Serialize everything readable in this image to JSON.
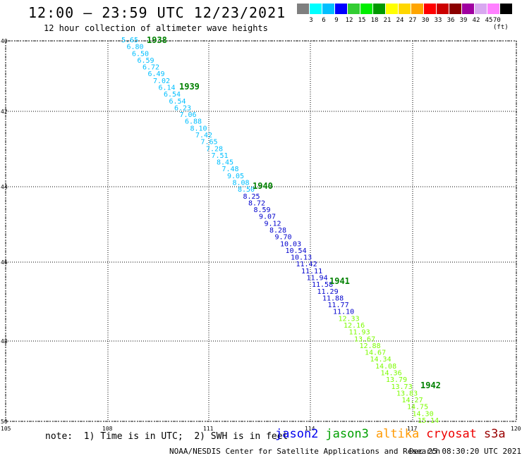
{
  "header": {
    "title": "12:00 – 23:59 UTC 12/23/2021",
    "subtitle": "12 hour collection of altimeter wave heights"
  },
  "colorbar": {
    "colors": [
      "#7f7f7f",
      "#00ffff",
      "#00bfff",
      "#0000ff",
      "#32cd32",
      "#00ee00",
      "#009900",
      "#ffff00",
      "#ffd700",
      "#ffa500",
      "#ff0000",
      "#cc0000",
      "#8b0000",
      "#a000a0",
      "#d8a8f0",
      "#ff80ff",
      "#000000"
    ],
    "labels": [
      "3",
      "6",
      "9",
      "12",
      "15",
      "18",
      "21",
      "24",
      "27",
      "30",
      "33",
      "36",
      "39",
      "42",
      "45",
      "70 (ft)"
    ]
  },
  "map": {
    "y_ticks": [
      "40",
      "42",
      "44",
      "46",
      "48",
      "50"
    ],
    "x_ticks": [
      "105",
      "108",
      "111",
      "114",
      "117",
      "120"
    ],
    "colors": {
      "light_blue": "#00bfff",
      "dark_blue": "#0000cd",
      "light_green": "#7cfc00",
      "green": "#008000"
    },
    "times": [
      "1938",
      "1939",
      "1940",
      "1941",
      "1942"
    ],
    "values": [
      "5.65",
      "6.80",
      "6.50",
      "6.59",
      "6.72",
      "6.49",
      "7.02",
      "6.14",
      "6.54",
      "6.54",
      "6.23",
      "7.06",
      "6.88",
      "8.10",
      "7.42",
      "7.65",
      "7.28",
      "7.51",
      "8.45",
      "7.48",
      "9.05",
      "8.08",
      "8.50",
      "8.25",
      "8.72",
      "8.59",
      "9.07",
      "9.12",
      "8.28",
      "9.70",
      "10.03",
      "10.54",
      "10.13",
      "11.42",
      "11.11",
      "11.94",
      "11.58",
      "11.29",
      "11.88",
      "11.77",
      "11.10",
      "12.33",
      "12.16",
      "11.93",
      "13.67",
      "12.88",
      "14.67",
      "14.34",
      "14.08",
      "14.36",
      "13.79",
      "13.73",
      "13.83",
      "14.27",
      "14.75",
      "14.30",
      "15.14"
    ]
  },
  "footer": {
    "note": "note:  1) Time is in UTC;  2) SWH is in feet",
    "satellites": [
      {
        "name": "jason2",
        "color": "#0000ee"
      },
      {
        "name": "jason3",
        "color": "#00a000"
      },
      {
        "name": "altika",
        "color": "#ff9900"
      },
      {
        "name": "cryosat",
        "color": "#ee0000"
      },
      {
        "name": "s3a",
        "color": "#990000"
      }
    ],
    "credit": "NOAA/NESDIS Center for Satellite Applications and Research",
    "timestamp": "Dec 25 08:30:20 UTC 2021"
  }
}
